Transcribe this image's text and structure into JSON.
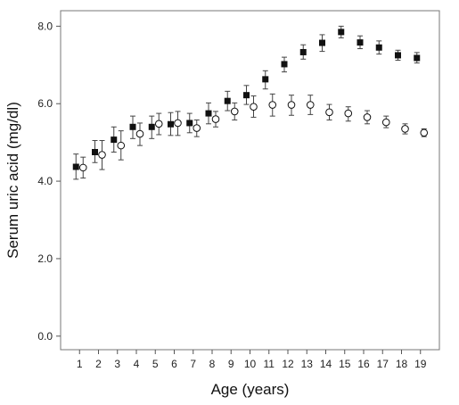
{
  "chart_data": {
    "type": "scatter",
    "title": "",
    "xlabel": "Age (years)",
    "ylabel": "Serum uric acid (mg/dl)",
    "x": [
      1,
      2,
      3,
      4,
      5,
      6,
      7,
      8,
      9,
      10,
      11,
      12,
      13,
      14,
      15,
      16,
      17,
      18,
      19
    ],
    "x_tick_labels": [
      "1",
      "2",
      "3",
      "4",
      "5",
      "6",
      "7",
      "8",
      "9",
      "10",
      "11",
      "12",
      "13",
      "14",
      "15",
      "16",
      "17",
      "18",
      "19"
    ],
    "y_tick_labels": [
      "0.0",
      "2.0",
      "4.0",
      "6.0",
      "8.0"
    ],
    "ylim": [
      -0.35,
      8.4
    ],
    "xlim": [
      0,
      20
    ],
    "grid": false,
    "legend": "none",
    "series": [
      {
        "marker": "filled-square",
        "color": "#111111",
        "values": [
          4.37,
          4.75,
          5.07,
          5.4,
          5.4,
          5.47,
          5.5,
          5.75,
          6.07,
          6.22,
          6.63,
          7.02,
          7.33,
          7.57,
          7.85,
          7.58,
          7.45,
          7.25,
          7.18
        ],
        "err_low": [
          4.05,
          4.48,
          4.75,
          5.1,
          5.1,
          5.18,
          5.25,
          5.48,
          5.82,
          5.98,
          6.38,
          6.82,
          7.15,
          7.35,
          7.7,
          7.42,
          7.28,
          7.12,
          7.05
        ],
        "err_high": [
          4.7,
          5.05,
          5.4,
          5.68,
          5.68,
          5.77,
          5.75,
          6.02,
          6.32,
          6.47,
          6.85,
          7.2,
          7.52,
          7.78,
          8.0,
          7.75,
          7.62,
          7.38,
          7.32
        ]
      },
      {
        "marker": "open-circle",
        "color": "#111111",
        "values": [
          4.35,
          4.68,
          4.92,
          5.22,
          5.48,
          5.5,
          5.37,
          5.6,
          5.8,
          5.92,
          5.97,
          5.97,
          5.97,
          5.78,
          5.75,
          5.65,
          5.52,
          5.35,
          5.25
        ],
        "err_low": [
          4.08,
          4.3,
          4.55,
          4.92,
          5.2,
          5.18,
          5.15,
          5.4,
          5.58,
          5.65,
          5.68,
          5.7,
          5.72,
          5.58,
          5.55,
          5.48,
          5.38,
          5.22,
          5.15
        ],
        "err_high": [
          4.62,
          5.05,
          5.3,
          5.5,
          5.75,
          5.8,
          5.58,
          5.8,
          6.02,
          6.2,
          6.25,
          6.22,
          6.22,
          5.98,
          5.92,
          5.82,
          5.68,
          5.48,
          5.35
        ]
      }
    ]
  }
}
